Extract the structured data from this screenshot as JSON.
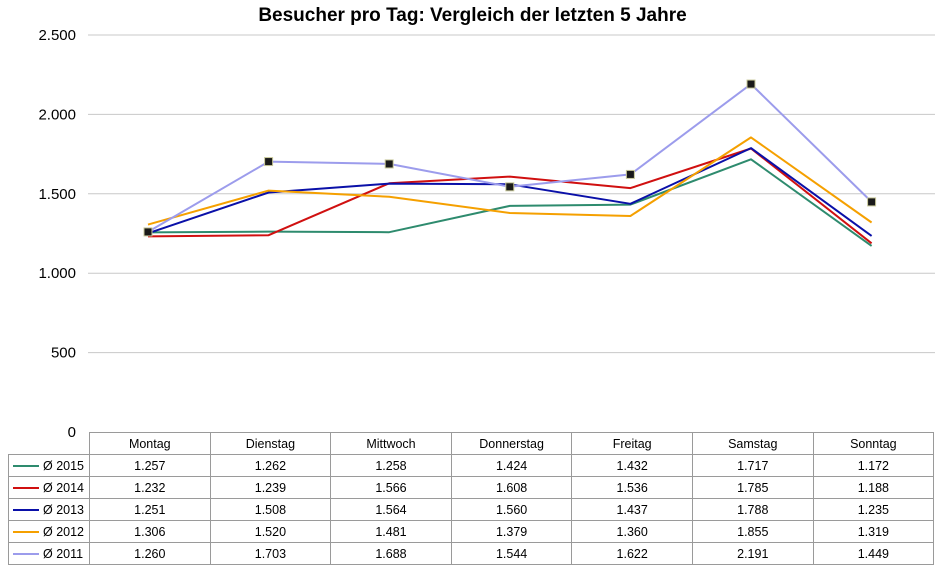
{
  "chart_data": {
    "type": "line",
    "title": "Besucher pro Tag: Vergleich der letzten 5 Jahre",
    "xlabel": "",
    "ylabel": "",
    "categories": [
      "Montag",
      "Dienstag",
      "Mittwoch",
      "Donnerstag",
      "Freitag",
      "Samstag",
      "Sonntag"
    ],
    "ylim": [
      0,
      2500
    ],
    "yticks": [
      {
        "value": 0,
        "label": "0"
      },
      {
        "value": 500,
        "label": "500"
      },
      {
        "value": 1000,
        "label": "1.000"
      },
      {
        "value": 1500,
        "label": "1.500"
      },
      {
        "value": 2000,
        "label": "2.000"
      },
      {
        "value": 2500,
        "label": "2.500"
      }
    ],
    "grid": true,
    "legend": "data-table",
    "series": [
      {
        "name": "Ø 2015",
        "color": "#2e8b6e",
        "values": [
          1257,
          1262,
          1258,
          1424,
          1432,
          1717,
          1172
        ],
        "labels": [
          "1.257",
          "1.262",
          "1.258",
          "1.424",
          "1.432",
          "1.717",
          "1.172"
        ]
      },
      {
        "name": "Ø 2014",
        "color": "#d01010",
        "values": [
          1232,
          1239,
          1566,
          1608,
          1536,
          1785,
          1188
        ],
        "labels": [
          "1.232",
          "1.239",
          "1.566",
          "1.608",
          "1.536",
          "1.785",
          "1.188"
        ]
      },
      {
        "name": "Ø 2013",
        "color": "#0a10a8",
        "values": [
          1251,
          1508,
          1564,
          1560,
          1437,
          1788,
          1235
        ],
        "labels": [
          "1.251",
          "1.508",
          "1.564",
          "1.560",
          "1.437",
          "1.788",
          "1.235"
        ]
      },
      {
        "name": "Ø 2012",
        "color": "#f5a000",
        "values": [
          1306,
          1520,
          1481,
          1379,
          1360,
          1855,
          1319
        ],
        "labels": [
          "1.306",
          "1.520",
          "1.481",
          "1.379",
          "1.360",
          "1.855",
          "1.319"
        ]
      },
      {
        "name": "Ø 2011",
        "color": "#9c9cec",
        "values": [
          1260,
          1703,
          1688,
          1544,
          1622,
          2191,
          1449
        ],
        "labels": [
          "1.260",
          "1.703",
          "1.688",
          "1.544",
          "1.622",
          "2.191",
          "1.449"
        ],
        "markers": true
      }
    ]
  }
}
